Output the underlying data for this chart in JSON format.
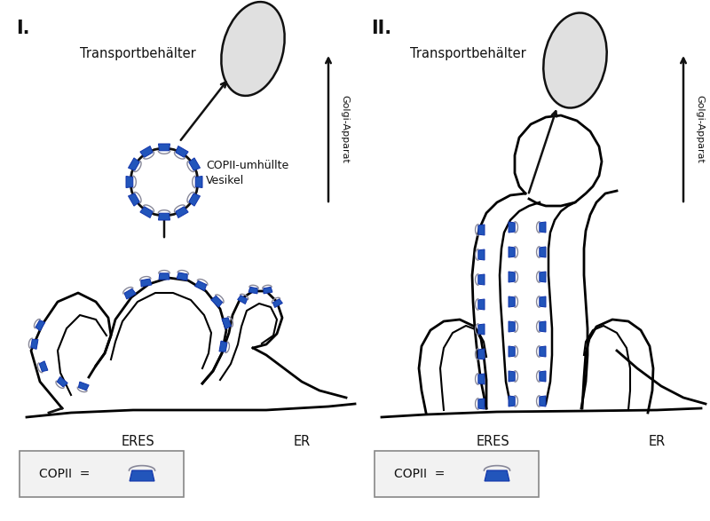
{
  "title_left": "I.",
  "title_right": "II.",
  "label_transportbehaelter": "Transportbehälter",
  "label_copii_vesikel": "COPII-umhüllte\nVesikel",
  "label_eres": "ERES",
  "label_er": "ER",
  "label_golgi": "Golgi-Apparat",
  "label_copii_legend": "COPII  =",
  "bg_color": "#ffffff",
  "ellipse_fill": "#e0e0e0",
  "ellipse_edge": "#222222",
  "copii_blue_fill": "#2255bb",
  "copii_blue_edge": "#1133aa",
  "line_color": "#111111",
  "text_color": "#111111"
}
